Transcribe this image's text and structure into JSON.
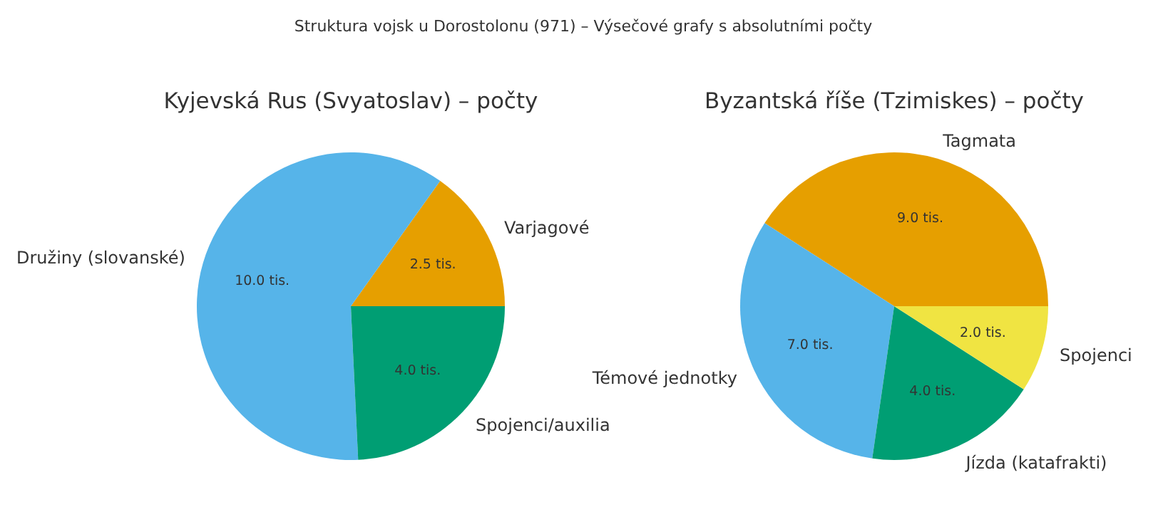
{
  "chart_data": [
    {
      "type": "pie",
      "title": "Kyjevská Rus (Svyatoslav) – počty",
      "annotations": [
        "Struktura vojsk u Dorostolonu (971) – Výsečové grafy s absolutními počty"
      ],
      "categories": [
        "Varjagové",
        "Družiny (slovanské)",
        "Spojenci/auxilia"
      ],
      "values": [
        2.5,
        10.0,
        4.0
      ],
      "colors": [
        "#e69f00",
        "#56b4e9",
        "#009e73"
      ],
      "value_labels": [
        "2.5 tis.",
        "10.0 tis.",
        "4.0 tis."
      ]
    },
    {
      "type": "pie",
      "title": "Byzantská říše (Tzimiskes) – počty",
      "categories": [
        "Tagmata",
        "Témové jednotky",
        "Jízda (katafrakti)",
        "Spojenci"
      ],
      "values": [
        9.0,
        7.0,
        4.0,
        2.0
      ],
      "colors": [
        "#e69f00",
        "#56b4e9",
        "#009e73",
        "#f0e442"
      ],
      "value_labels": [
        "9.0 tis.",
        "7.0 tis.",
        "4.0 tis.",
        "2.0 tis."
      ]
    }
  ]
}
